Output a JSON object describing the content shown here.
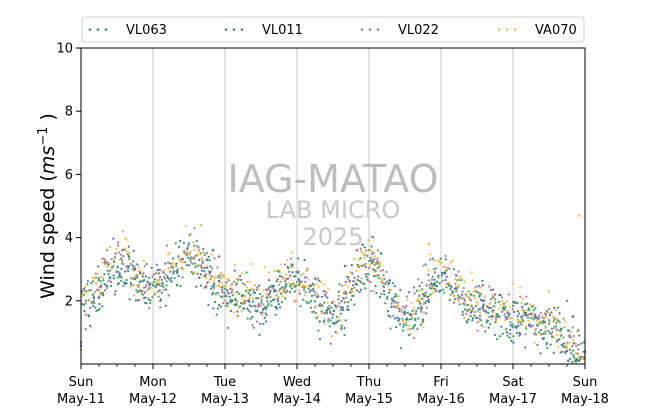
{
  "chart_data": {
    "type": "scatter",
    "title": "",
    "ylabel": "Wind speed",
    "yunit_base": "ms",
    "yunit_exp": "−1",
    "ylim": [
      0,
      10
    ],
    "yticks": [
      2,
      4,
      6,
      8,
      10
    ],
    "xlim": [
      "2025-05-11",
      "2025-05-18"
    ],
    "grid": "vertical at day boundaries",
    "legend_position": "top",
    "xticks": [
      {
        "date": "2025-05-11",
        "day": "Sun",
        "date_label": "May-11"
      },
      {
        "date": "2025-05-12",
        "day": "Mon",
        "date_label": "May-12"
      },
      {
        "date": "2025-05-13",
        "day": "Tue",
        "date_label": "May-13"
      },
      {
        "date": "2025-05-14",
        "day": "Wed",
        "date_label": "May-14"
      },
      {
        "date": "2025-05-15",
        "day": "Thu",
        "date_label": "May-15"
      },
      {
        "date": "2025-05-16",
        "day": "Fri",
        "date_label": "May-16"
      },
      {
        "date": "2025-05-17",
        "day": "Sat",
        "date_label": "May-17"
      },
      {
        "date": "2025-05-18",
        "day": "Sun",
        "date_label": "May-18"
      }
    ],
    "series": [
      {
        "name": "VL063",
        "color": "#2ca05a"
      },
      {
        "name": "VL011",
        "color": "#4c72b0"
      },
      {
        "name": "VL022",
        "color": "#b07aa1"
      },
      {
        "name": "VA070",
        "color": "#ffb833"
      }
    ],
    "daily_profile": {
      "date": [
        "2025-05-11",
        "2025-05-11 12:00",
        "2025-05-12",
        "2025-05-12 12:00",
        "2025-05-13",
        "2025-05-13 12:00",
        "2025-05-14",
        "2025-05-14 12:00",
        "2025-05-15",
        "2025-05-15 12:00",
        "2025-05-16",
        "2025-05-16 12:00",
        "2025-05-17",
        "2025-05-17 12:00",
        "2025-05-18"
      ],
      "mean_speed": [
        2.0,
        3.2,
        2.4,
        3.5,
        2.3,
        2.0,
        2.7,
        1.6,
        3.3,
        1.5,
        2.8,
        1.8,
        1.6,
        1.2,
        0.2
      ]
    },
    "series_samples": {
      "VL063": {
        "date": [
          "2025-05-11 04:00",
          "2025-05-11 16:00",
          "2025-05-12 08:00",
          "2025-05-12 20:00",
          "2025-05-13 14:00",
          "2025-05-14 10:00",
          "2025-05-15 04:00",
          "2025-05-15 18:00",
          "2025-05-16 10:00",
          "2025-05-16 22:00",
          "2025-05-17 16:00",
          "2025-05-17 22:00"
        ],
        "speed": [
          2.2,
          3.4,
          2.5,
          3.6,
          2.1,
          1.7,
          3.5,
          1.4,
          2.2,
          1.0,
          1.1,
          0.1
        ]
      },
      "VL011": {
        "date": [
          "2025-05-11 06:00",
          "2025-05-11 18:00",
          "2025-05-12 18:00",
          "2025-05-13 08:00",
          "2025-05-14 16:00",
          "2025-05-15 12:00",
          "2025-05-16 14:00",
          "2025-05-17 10:00",
          "2025-05-17 20:00"
        ],
        "speed": [
          2.1,
          3.0,
          3.3,
          2.0,
          3.1,
          1.6,
          2.0,
          0.8,
          1.5
        ]
      },
      "VL022": {
        "date": [
          "2025-05-11 10:00",
          "2025-05-12 02:00",
          "2025-05-12 22:00",
          "2025-05-13 20:00",
          "2025-05-14 20:00",
          "2025-05-15 22:00",
          "2025-05-16 18:00",
          "2025-05-17 06:00",
          "2025-05-17 18:00"
        ],
        "speed": [
          2.6,
          2.5,
          3.4,
          2.4,
          3.6,
          2.9,
          2.2,
          1.2,
          2.0
        ]
      },
      "VA070": {
        "date": [
          "2025-05-11 14:00",
          "2025-05-12 10:00",
          "2025-05-12 16:00",
          "2025-05-13 10:00",
          "2025-05-14 08:00",
          "2025-05-15 02:00",
          "2025-05-15 20:00",
          "2025-05-16 06:00",
          "2025-05-17 12:00",
          "2025-05-17 22:00"
        ],
        "speed": [
          4.2,
          3.0,
          4.4,
          2.5,
          2.6,
          3.2,
          3.8,
          2.0,
          2.3,
          4.7
        ]
      }
    }
  },
  "watermark": {
    "line1": "IAG-MATAO",
    "line2": "LAB MICRO",
    "line3": "2025"
  }
}
